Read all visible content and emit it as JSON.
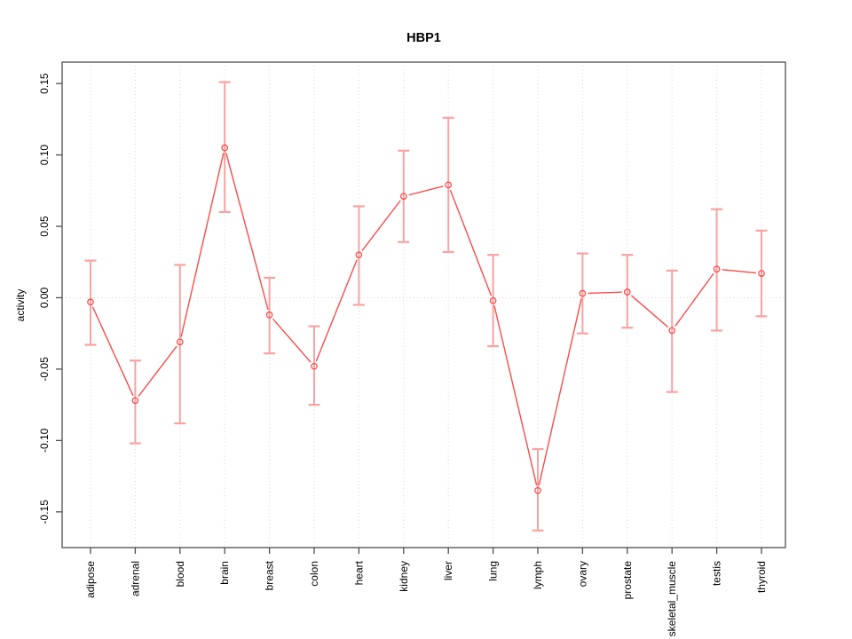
{
  "chart_data": {
    "type": "line",
    "title": "HBP1",
    "xlabel": "",
    "ylabel": "activity",
    "legend": "none",
    "grid": "dotted vertical gridline at each category and dotted horizontal line at y=0",
    "categories": [
      "adipose",
      "adrenal",
      "blood",
      "brain",
      "breast",
      "colon",
      "heart",
      "kidney",
      "liver",
      "lung",
      "lymph",
      "ovary",
      "prostate",
      "skeletal_muscle",
      "testis",
      "thyroid"
    ],
    "series": [
      {
        "name": "activity",
        "marker": "open-circle",
        "values": [
          -0.003,
          -0.072,
          -0.031,
          0.105,
          -0.012,
          -0.048,
          0.03,
          0.071,
          0.079,
          -0.002,
          -0.135,
          0.003,
          0.004,
          -0.023,
          0.02,
          0.017
        ],
        "error_low": [
          -0.033,
          -0.102,
          -0.088,
          0.06,
          -0.039,
          -0.075,
          -0.005,
          0.039,
          0.032,
          -0.034,
          -0.163,
          -0.025,
          -0.021,
          -0.066,
          -0.023,
          -0.013
        ],
        "error_high": [
          0.026,
          -0.044,
          0.023,
          0.151,
          0.014,
          -0.02,
          0.064,
          0.103,
          0.126,
          0.03,
          -0.106,
          0.031,
          0.03,
          0.019,
          0.062,
          0.047
        ]
      }
    ],
    "yticks": [
      -0.15,
      -0.1,
      -0.05,
      0.0,
      0.05,
      0.1,
      0.15
    ],
    "ytick_labels": [
      "-0.15",
      "-0.10",
      "-0.05",
      "0.00",
      "0.05",
      "0.10",
      "0.15"
    ],
    "ylim": [
      -0.175,
      0.165
    ],
    "zero_line": 0,
    "colors": {
      "line": "#fb4b4b",
      "marker": "#fb4b4b",
      "error_bar": "#f9a2a2",
      "grid": "#d9d9d9",
      "axis": "#4d4d4d",
      "text": "#000000",
      "background": "#ffffff"
    }
  }
}
